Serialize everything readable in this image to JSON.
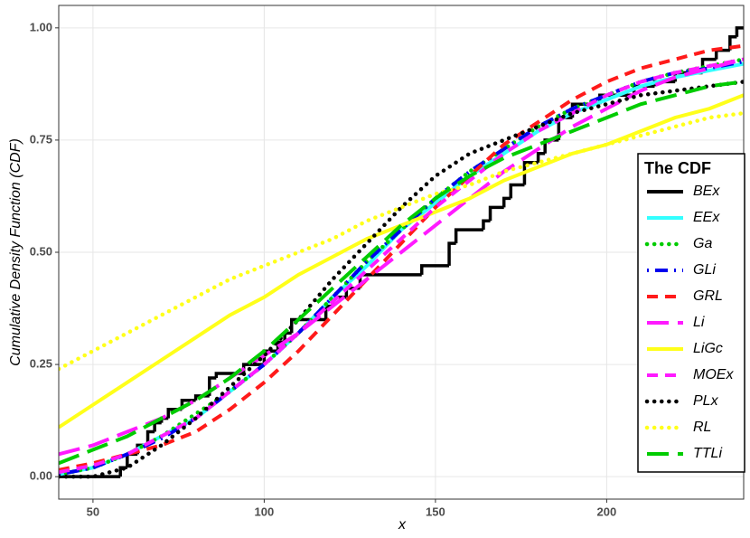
{
  "chart_data": {
    "type": "line",
    "xlabel": "x",
    "ylabel": "Cumulative Density Function (CDF)",
    "xlim": [
      40,
      240
    ],
    "ylim": [
      -0.05,
      1.05
    ],
    "xticks": [
      50,
      100,
      150,
      200
    ],
    "yticks": [
      {
        "value": 0,
        "label": "0.00"
      },
      {
        "value": 0.25,
        "label": "0.25"
      },
      {
        "value": 0.5,
        "label": "0.50"
      },
      {
        "value": 0.75,
        "label": "0.75"
      },
      {
        "value": 1,
        "label": "1.00"
      }
    ],
    "grid": true,
    "legend": {
      "title": "The CDF",
      "position": "right"
    },
    "x": [
      40,
      50,
      60,
      70,
      80,
      90,
      100,
      110,
      120,
      130,
      140,
      150,
      160,
      170,
      180,
      190,
      200,
      210,
      220,
      230,
      240
    ],
    "series": [
      {
        "name": "BEx",
        "color": "#000000",
        "linestyle": "solid",
        "step": true,
        "x": [
          40,
          58,
          60,
          63,
          66,
          68,
          70,
          72,
          76,
          80,
          84,
          86,
          94,
          100,
          104,
          106,
          108,
          118,
          120,
          124,
          128,
          146,
          154,
          156,
          164,
          166,
          170,
          172,
          176,
          180,
          182,
          186,
          190,
          198,
          208,
          214,
          220,
          228,
          232,
          236,
          238,
          240
        ],
        "values": [
          0,
          0.02,
          0.05,
          0.07,
          0.1,
          0.12,
          0.13,
          0.15,
          0.17,
          0.18,
          0.22,
          0.23,
          0.25,
          0.28,
          0.3,
          0.32,
          0.35,
          0.38,
          0.4,
          0.42,
          0.45,
          0.47,
          0.52,
          0.55,
          0.57,
          0.6,
          0.62,
          0.65,
          0.7,
          0.72,
          0.75,
          0.8,
          0.83,
          0.85,
          0.87,
          0.88,
          0.9,
          0.93,
          0.95,
          0.98,
          1.0,
          1.0
        ]
      },
      {
        "name": "EEx",
        "color": "#33ffff",
        "linestyle": "solid",
        "values": [
          0.005,
          0.02,
          0.05,
          0.09,
          0.13,
          0.19,
          0.25,
          0.32,
          0.4,
          0.47,
          0.55,
          0.61,
          0.67,
          0.72,
          0.77,
          0.81,
          0.84,
          0.87,
          0.89,
          0.905,
          0.92
        ]
      },
      {
        "name": "Ga",
        "color": "#00cc00",
        "linestyle": "dotted",
        "values": [
          0.005,
          0.02,
          0.05,
          0.09,
          0.14,
          0.19,
          0.25,
          0.32,
          0.4,
          0.48,
          0.55,
          0.62,
          0.68,
          0.73,
          0.78,
          0.82,
          0.85,
          0.88,
          0.9,
          0.915,
          0.93
        ]
      },
      {
        "name": "GLi",
        "color": "#0000ee",
        "linestyle": "dotdash",
        "values": [
          0.005,
          0.02,
          0.05,
          0.085,
          0.13,
          0.19,
          0.25,
          0.32,
          0.4,
          0.48,
          0.55,
          0.62,
          0.68,
          0.73,
          0.78,
          0.82,
          0.85,
          0.88,
          0.9,
          0.91,
          0.925
        ]
      },
      {
        "name": "GRL",
        "color": "#ff1a1a",
        "linestyle": "dashed",
        "values": [
          0.015,
          0.03,
          0.05,
          0.07,
          0.1,
          0.15,
          0.21,
          0.28,
          0.36,
          0.44,
          0.52,
          0.6,
          0.67,
          0.74,
          0.79,
          0.84,
          0.88,
          0.91,
          0.93,
          0.95,
          0.96
        ]
      },
      {
        "name": "Li",
        "color": "#ff1aff",
        "linestyle": "longdash",
        "values": [
          0.05,
          0.07,
          0.1,
          0.13,
          0.17,
          0.22,
          0.27,
          0.32,
          0.38,
          0.44,
          0.5,
          0.56,
          0.62,
          0.68,
          0.73,
          0.78,
          0.82,
          0.86,
          0.89,
          0.91,
          0.93
        ]
      },
      {
        "name": "LiGc",
        "color": "#ffff1a",
        "linestyle": "solid",
        "values": [
          0.11,
          0.16,
          0.21,
          0.26,
          0.31,
          0.36,
          0.4,
          0.45,
          0.49,
          0.53,
          0.56,
          0.59,
          0.62,
          0.66,
          0.69,
          0.72,
          0.74,
          0.77,
          0.8,
          0.82,
          0.85
        ]
      },
      {
        "name": "MOEx",
        "color": "#ff1aff",
        "linestyle": "dashed",
        "values": [
          0.01,
          0.025,
          0.05,
          0.09,
          0.13,
          0.19,
          0.25,
          0.32,
          0.39,
          0.46,
          0.53,
          0.6,
          0.66,
          0.72,
          0.77,
          0.81,
          0.85,
          0.88,
          0.9,
          0.915,
          0.93
        ]
      },
      {
        "name": "PLx",
        "color": "#000000",
        "linestyle": "dotted",
        "values": [
          0,
          0,
          0.02,
          0.07,
          0.13,
          0.2,
          0.27,
          0.35,
          0.44,
          0.52,
          0.6,
          0.67,
          0.72,
          0.75,
          0.78,
          0.81,
          0.83,
          0.85,
          0.86,
          0.87,
          0.88
        ]
      },
      {
        "name": "RL",
        "color": "#ffff1a",
        "linestyle": "dotted",
        "values": [
          0.24,
          0.28,
          0.32,
          0.36,
          0.4,
          0.44,
          0.47,
          0.5,
          0.53,
          0.57,
          0.6,
          0.63,
          0.65,
          0.68,
          0.7,
          0.72,
          0.74,
          0.76,
          0.78,
          0.8,
          0.81
        ]
      },
      {
        "name": "TTLi",
        "color": "#00cc00",
        "linestyle": "longdash",
        "values": [
          0.03,
          0.06,
          0.09,
          0.13,
          0.17,
          0.22,
          0.28,
          0.35,
          0.42,
          0.49,
          0.56,
          0.62,
          0.67,
          0.71,
          0.74,
          0.77,
          0.8,
          0.83,
          0.85,
          0.87,
          0.88
        ]
      }
    ]
  }
}
